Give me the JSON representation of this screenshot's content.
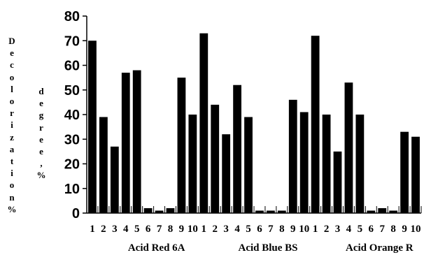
{
  "chart_data": {
    "type": "bar",
    "title": "",
    "ylabel_outer": "Decolorization%",
    "ylabel_inner": "degree,%",
    "ylim": [
      0,
      80
    ],
    "yticks": [
      0,
      10,
      20,
      30,
      40,
      50,
      60,
      70,
      80
    ],
    "grid": false,
    "legend": "none",
    "bar_color": "#000000",
    "tick_labels": [
      "1",
      "2",
      "3",
      "4",
      "5",
      "6",
      "7",
      "8",
      "9",
      "10",
      "1",
      "2",
      "3",
      "4",
      "5",
      "6",
      "7",
      "8",
      "9",
      "10",
      "1",
      "2",
      "3",
      "4",
      "5",
      "6",
      "7",
      "8",
      "9",
      "10"
    ],
    "groups": [
      {
        "name": "Acid Red 6A",
        "values": [
          70,
          39,
          27,
          57,
          58,
          2,
          1,
          2,
          55,
          40
        ]
      },
      {
        "name": "Acid Blue BS",
        "values": [
          73,
          44,
          32,
          52,
          39,
          1,
          1,
          1,
          46,
          41
        ]
      },
      {
        "name": "Acid Orange R",
        "values": [
          72,
          40,
          25,
          53,
          40,
          1,
          2,
          1,
          33,
          31
        ]
      }
    ]
  }
}
